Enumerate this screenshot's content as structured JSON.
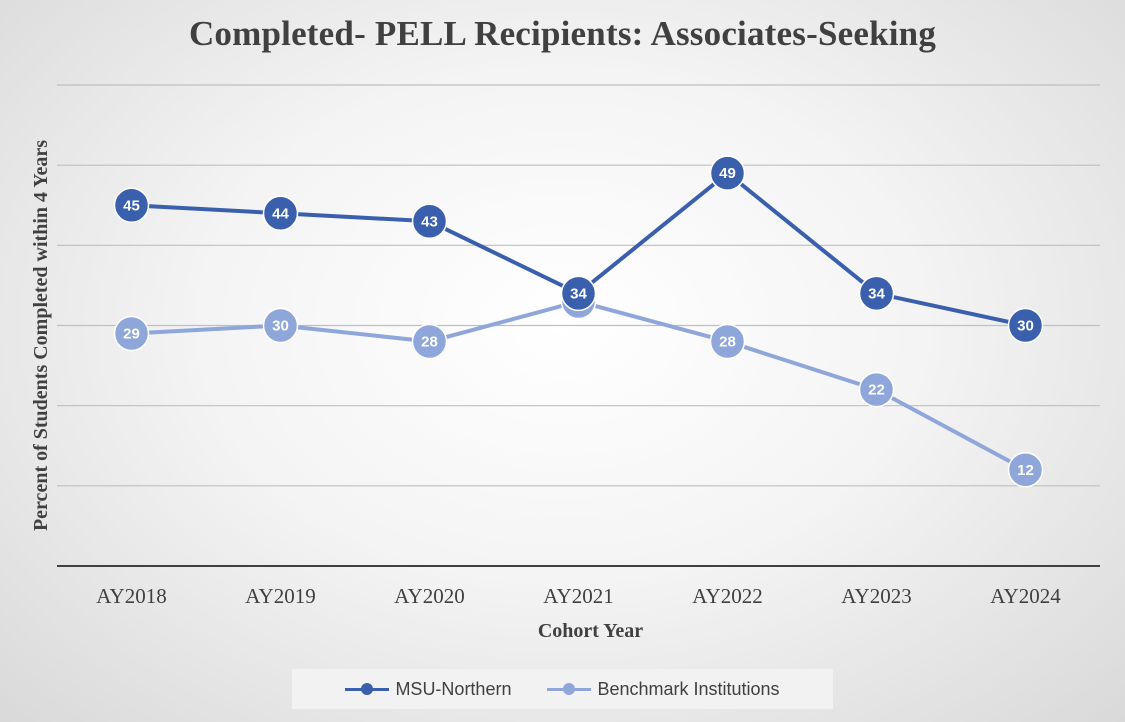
{
  "chart_data": {
    "type": "line",
    "title": "Completed- PELL Recipients: Associates-Seeking",
    "xlabel": "Cohort Year",
    "ylabel": "Percent of Students Completed within 4 Years",
    "categories": [
      "AY2018",
      "AY2019",
      "AY2020",
      "AY2021",
      "AY2022",
      "AY2023",
      "AY2024"
    ],
    "ylim": [
      0,
      60
    ],
    "grid": true,
    "legend_position": "bottom",
    "series": [
      {
        "name": "MSU-Northern",
        "values": [
          45,
          44,
          43,
          34,
          49,
          34,
          30
        ],
        "color": "#3a5fad"
      },
      {
        "name": "Benchmark Institutions",
        "values": [
          29,
          30,
          28,
          33,
          28,
          22,
          12
        ],
        "color": "#8fa6da"
      }
    ]
  }
}
